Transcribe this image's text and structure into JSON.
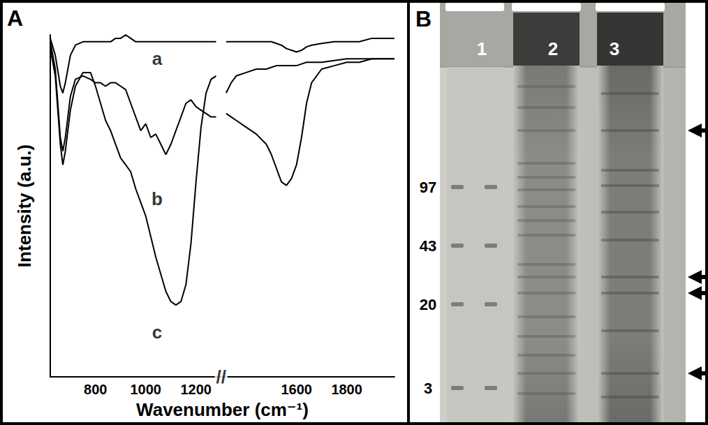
{
  "chart_data": {
    "type": "line",
    "panel_label": "A",
    "xlabel": "Wavenumber (cm⁻¹)",
    "ylabel": "Intensity (a.u.)",
    "x": [
      620,
      640,
      660,
      670,
      680,
      700,
      720,
      750,
      780,
      800,
      820,
      840,
      860,
      880,
      900,
      920,
      940,
      960,
      980,
      1000,
      1020,
      1040,
      1060,
      1080,
      1100,
      1120,
      1140,
      1160,
      1180,
      1200,
      1220,
      1240,
      1260,
      1280,
      1300,
      1320,
      1340,
      1360,
      1400,
      1440,
      1480,
      1500,
      1520,
      1540,
      1560,
      1580,
      1600,
      1620,
      1640,
      1660,
      1700,
      1750,
      1800,
      1850,
      1900,
      1950,
      1990
    ],
    "series": [
      {
        "name": "a",
        "color": "#000000",
        "line_style": "solid",
        "values": [
          99,
          94,
          85,
          83,
          86,
          94,
          97,
          98,
          98,
          98,
          98,
          98,
          98,
          99,
          99,
          100,
          99,
          98,
          98,
          98,
          98,
          98,
          98,
          98,
          98,
          98,
          98,
          98,
          98,
          98,
          98,
          98,
          98,
          98,
          null,
          98,
          98,
          98,
          98,
          98,
          98,
          98,
          97.5,
          97,
          96,
          95.5,
          95,
          95.5,
          96.5,
          97,
          97.5,
          98,
          98,
          98,
          99,
          99,
          99
        ]
      },
      {
        "name": "b",
        "color": "#000000",
        "line_style": "solid",
        "values": [
          98,
          90,
          70,
          66,
          70,
          82,
          87,
          88,
          87,
          86,
          86,
          85,
          86,
          86,
          85,
          84,
          80,
          76,
          72,
          74,
          70,
          71,
          68,
          65,
          68,
          72,
          76,
          80,
          81,
          79,
          78,
          77,
          76,
          76,
          null,
          77,
          76,
          75,
          73,
          71,
          68,
          65,
          61,
          57,
          56,
          58,
          62,
          70,
          80,
          86,
          90,
          91,
          92,
          92,
          93,
          93,
          93
        ]
      },
      {
        "name": "c",
        "color": "#000000",
        "line_style": "solid",
        "values": [
          96,
          88,
          68,
          62,
          66,
          78,
          85,
          89,
          89,
          85,
          80,
          75,
          72,
          68,
          64,
          62,
          60,
          55,
          51,
          47,
          41,
          35,
          30,
          25,
          22,
          21,
          22,
          27,
          39,
          57,
          73,
          83,
          87,
          88,
          null,
          83,
          86,
          88,
          89,
          90,
          90,
          90.5,
          91,
          91,
          91,
          91,
          91,
          91.5,
          92,
          92,
          92,
          92.5,
          93,
          93,
          93,
          93,
          93
        ]
      }
    ],
    "annotations": [
      {
        "text": "a",
        "x": 1045,
        "y": 93
      },
      {
        "text": "b",
        "x": 1045,
        "y": 52
      },
      {
        "text": "c",
        "x": 1045,
        "y": 13
      },
      {
        "text": "//",
        "x": 1300,
        "y": 0
      }
    ],
    "xlim": [
      620,
      1990
    ],
    "xticks": [
      800,
      1000,
      1200,
      1600,
      1800
    ],
    "ylim": [
      0,
      100
    ],
    "tick_labels": "x",
    "grid": false
  },
  "gel": {
    "panel_label": "B",
    "lanes": [
      "1",
      "2",
      "3"
    ],
    "markers": [
      97,
      43,
      20,
      3
    ]
  }
}
